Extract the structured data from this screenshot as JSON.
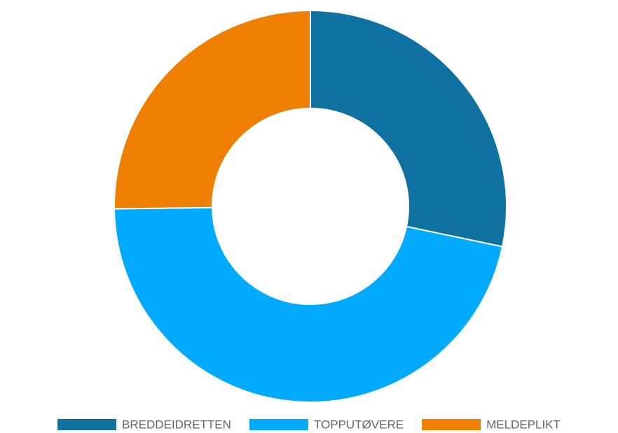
{
  "chart_data": {
    "type": "pie",
    "categories": [
      "BREDDEIDRETTEN",
      "TOPPUTØVERE",
      "MELDEPLIKT"
    ],
    "values": [
      28.3,
      46.5,
      25.2
    ],
    "colors": [
      "#0e71a0",
      "#00aaff",
      "#ef7f00"
    ],
    "legend": "bottom"
  }
}
